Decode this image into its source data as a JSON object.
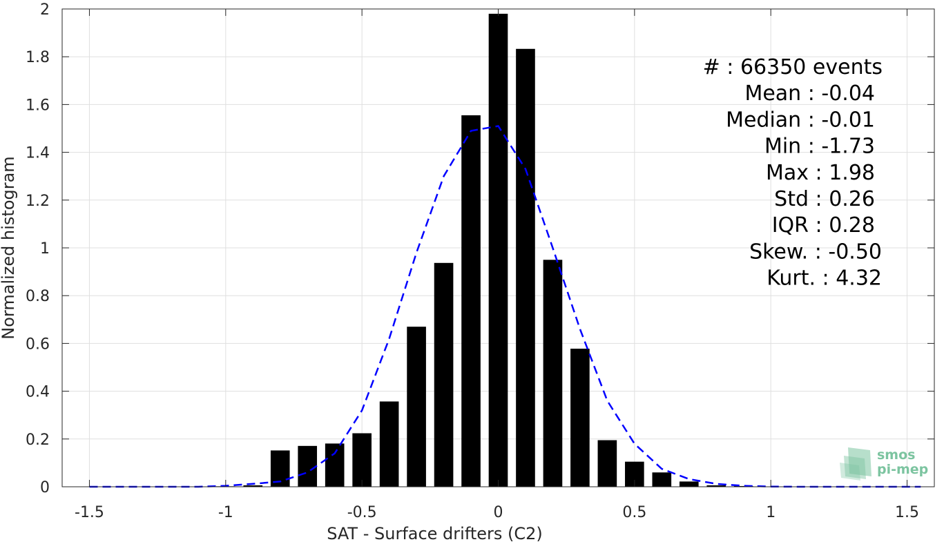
{
  "chart_data": {
    "type": "bar",
    "xlabel": "SAT - Surface drifters (C2)",
    "ylabel": "Normalized histogram",
    "xlim": [
      -1.6,
      1.6
    ],
    "ylim": [
      0,
      2
    ],
    "xticks": [
      -1.5,
      -1,
      -0.5,
      0,
      0.5,
      1,
      1.5
    ],
    "xtick_labels": [
      "-1.5",
      "-1",
      "-0.5",
      "0",
      "0.5",
      "1",
      "1.5"
    ],
    "yticks": [
      0,
      0.2,
      0.4,
      0.6,
      0.8,
      1,
      1.2,
      1.4,
      1.6,
      1.8,
      2
    ],
    "ytick_labels": [
      "0",
      "0.2",
      "0.4",
      "0.6",
      "0.8",
      "1",
      "1.2",
      "1.4",
      "1.6",
      "1.8",
      "2"
    ],
    "grid": true,
    "bar_width": 0.07,
    "bar_color": "#000000",
    "bars": {
      "x": [
        -1.5,
        -1.4,
        -1.3,
        -1.2,
        -1.1,
        -1.0,
        -0.9,
        -0.8,
        -0.7,
        -0.6,
        -0.5,
        -0.4,
        -0.3,
        -0.2,
        -0.1,
        0.0,
        0.1,
        0.2,
        0.3,
        0.4,
        0.5,
        0.6,
        0.7,
        0.8,
        0.9,
        1.0,
        1.1,
        1.2,
        1.3,
        1.4,
        1.5
      ],
      "values": [
        0.001,
        0.0,
        0.0,
        0.0,
        0.0,
        0.002,
        0.006,
        0.152,
        0.171,
        0.181,
        0.224,
        0.357,
        0.67,
        0.937,
        1.555,
        1.98,
        1.833,
        0.95,
        0.578,
        0.195,
        0.105,
        0.06,
        0.022,
        0.006,
        0.003,
        0.001,
        0.0,
        0.0,
        0.0,
        0.0,
        0.0
      ]
    },
    "fit_curve": {
      "style": "dashed",
      "color": "#0000ff",
      "x": [
        -1.5,
        -1.4,
        -1.3,
        -1.2,
        -1.1,
        -1.0,
        -0.9,
        -0.8,
        -0.7,
        -0.6,
        -0.5,
        -0.4,
        -0.3,
        -0.2,
        -0.1,
        0.0,
        0.1,
        0.2,
        0.3,
        0.4,
        0.5,
        0.6,
        0.7,
        0.8,
        0.9,
        1.0,
        1.1,
        1.2,
        1.3,
        1.4,
        1.5,
        1.55
      ],
      "values": [
        0.0,
        0.0,
        0.0,
        0.0,
        0.0,
        0.004,
        0.012,
        0.022,
        0.06,
        0.14,
        0.32,
        0.62,
        0.98,
        1.3,
        1.49,
        1.51,
        1.33,
        1.0,
        0.66,
        0.36,
        0.18,
        0.075,
        0.032,
        0.012,
        0.004,
        0.001,
        0.0,
        0.0,
        0.0,
        0.0,
        0.0,
        0.0
      ]
    },
    "stats": [
      "#  : 66350 events",
      "Mean : -0.04",
      "Median : -0.01",
      "Min : -1.73",
      "Max : 1.98",
      "Std : 0.26",
      "IQR : 0.28",
      "Skew. : -0.50",
      "Kurt. : 4.32"
    ]
  },
  "logo": {
    "line1": "smos",
    "line2": "pi-mep"
  },
  "colors": {
    "grid": "#dfdfdf",
    "axis": "#262626",
    "logo": "#7cc4a0"
  }
}
